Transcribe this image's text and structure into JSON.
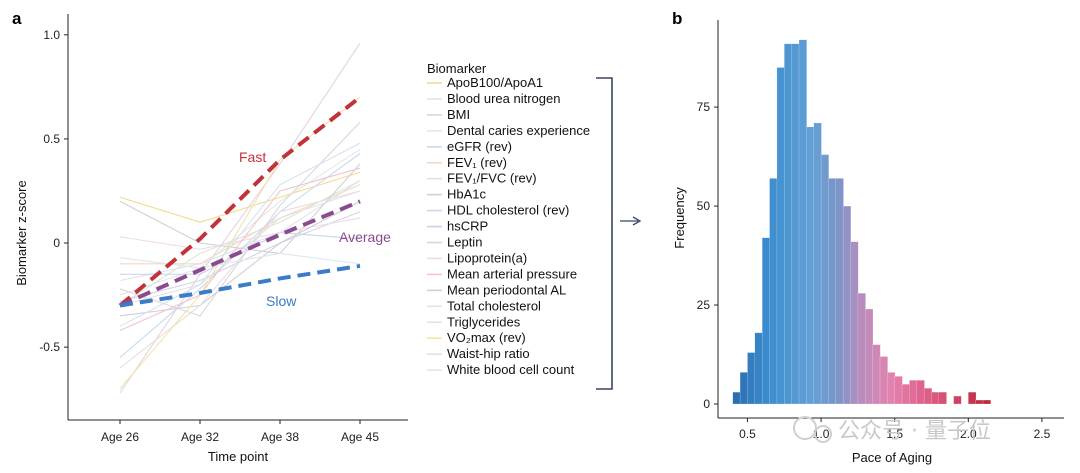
{
  "chart_data": [
    {
      "panel_label": "a",
      "type": "line",
      "xlabel": "Time point",
      "ylabel": "Biomarker z-score",
      "categories": [
        "Age 26",
        "Age 32",
        "Age 38",
        "Age 45"
      ],
      "ylim": [
        -0.85,
        1.1
      ],
      "yticks": [
        -0.5,
        0,
        0.5,
        1.0
      ],
      "ytick_labels": [
        "-0.5",
        "0",
        "0.5",
        "1.0"
      ],
      "legend_title": "Biomarker",
      "biomarkers": [
        {
          "name": "ApoB100/ApoA1",
          "color": "#f2dc8a",
          "values": [
            0.22,
            0.1,
            0.22,
            0.34
          ]
        },
        {
          "name": "Blood urea nitrogen",
          "color": "#dde3f2",
          "values": [
            -0.18,
            -0.1,
            0.05,
            0.3
          ]
        },
        {
          "name": "BMI",
          "color": "#e2d2e7",
          "values": [
            -0.72,
            -0.15,
            0.38,
            0.96
          ]
        },
        {
          "name": "Dental caries experience",
          "color": "#e6e6e6",
          "values": [
            -0.25,
            -0.12,
            0.2,
            0.45
          ]
        },
        {
          "name": "eGFR (rev)",
          "color": "#c9daf2",
          "values": [
            -0.55,
            -0.22,
            0.15,
            0.43
          ]
        },
        {
          "name": "FEV₁ (rev)",
          "color": "#f3d8c4",
          "values": [
            -0.1,
            -0.1,
            0.12,
            0.28
          ]
        },
        {
          "name": "FEV₁/FVC (rev)",
          "color": "#d8e8d0",
          "values": [
            -0.3,
            -0.05,
            0.1,
            0.3
          ]
        },
        {
          "name": "HbA1c",
          "color": "#d0d0d0",
          "values": [
            0.2,
            0.0,
            -0.05,
            0.38
          ]
        },
        {
          "name": "HDL cholesterol (rev)",
          "color": "#dad0e8",
          "values": [
            -0.28,
            -0.18,
            0.0,
            0.15
          ]
        },
        {
          "name": "hsCRP",
          "color": "#c6d3e9",
          "values": [
            -0.15,
            -0.15,
            0.05,
            0.02
          ]
        },
        {
          "name": "Leptin",
          "color": "#d7d7d7",
          "values": [
            -0.22,
            -0.35,
            0.18,
            0.58
          ]
        },
        {
          "name": "Lipoprotein(a)",
          "color": "#f0d8ec",
          "values": [
            0.03,
            -0.03,
            0.05,
            0.12
          ]
        },
        {
          "name": "Mean arterial pressure",
          "color": "#f2c4cf",
          "values": [
            -0.42,
            -0.25,
            0.25,
            0.36
          ]
        },
        {
          "name": "Mean periodontal AL",
          "color": "#cfcfd8",
          "values": [
            -0.35,
            -0.3,
            0.0,
            0.2
          ]
        },
        {
          "name": "Total cholesterol",
          "color": "#e3e3e3",
          "values": [
            -0.3,
            -0.2,
            0.12,
            0.25
          ]
        },
        {
          "name": "Triglycerides",
          "color": "#eadde0",
          "values": [
            -0.6,
            -0.3,
            0.15,
            0.25
          ]
        },
        {
          "name": "VO₂max (rev)",
          "color": "#f5e3a3",
          "values": [
            -0.7,
            -0.25,
            0.4,
            0.7
          ]
        },
        {
          "name": "Waist-hip ratio",
          "color": "#d5e3f0",
          "values": [
            -0.4,
            -0.2,
            0.28,
            0.48
          ]
        },
        {
          "name": "White blood cell count",
          "color": "#e0e6ee",
          "values": [
            -0.07,
            -0.12,
            -0.05,
            -0.1
          ]
        }
      ],
      "trends": [
        {
          "name": "Fast",
          "color": "#c0333a",
          "values": [
            -0.3,
            0.02,
            0.4,
            0.7
          ]
        },
        {
          "name": "Average",
          "color": "#8b4a90",
          "values": [
            -0.3,
            -0.13,
            0.04,
            0.2
          ]
        },
        {
          "name": "Slow",
          "color": "#3c7cc6",
          "values": [
            -0.3,
            -0.24,
            -0.17,
            -0.11
          ]
        }
      ],
      "annotations": {
        "fast": "Fast",
        "average": "Average",
        "slow": "Slow"
      }
    },
    {
      "panel_label": "b",
      "type": "bar",
      "xlabel": "Pace of Aging",
      "ylabel": "Frequency",
      "xlim": [
        0.3,
        2.65
      ],
      "ylim": [
        0,
        97
      ],
      "xticks": [
        0.5,
        1.0,
        1.5,
        2.0,
        2.5
      ],
      "xtick_labels": [
        "0.5",
        "1.0",
        "1.5",
        "2.0",
        "2.5"
      ],
      "yticks": [
        0,
        25,
        50,
        75
      ],
      "bin_start": 0.4,
      "bin_width": 0.05,
      "values": [
        3,
        8,
        13,
        18,
        42,
        57,
        85,
        91,
        91,
        92,
        70,
        71,
        63,
        57,
        57,
        50,
        41,
        28,
        24,
        15,
        12,
        8,
        7,
        5,
        6,
        6,
        4,
        3,
        3,
        0,
        2,
        0,
        3,
        1,
        1
      ]
    }
  ],
  "watermark": "公众号 · 量子位"
}
